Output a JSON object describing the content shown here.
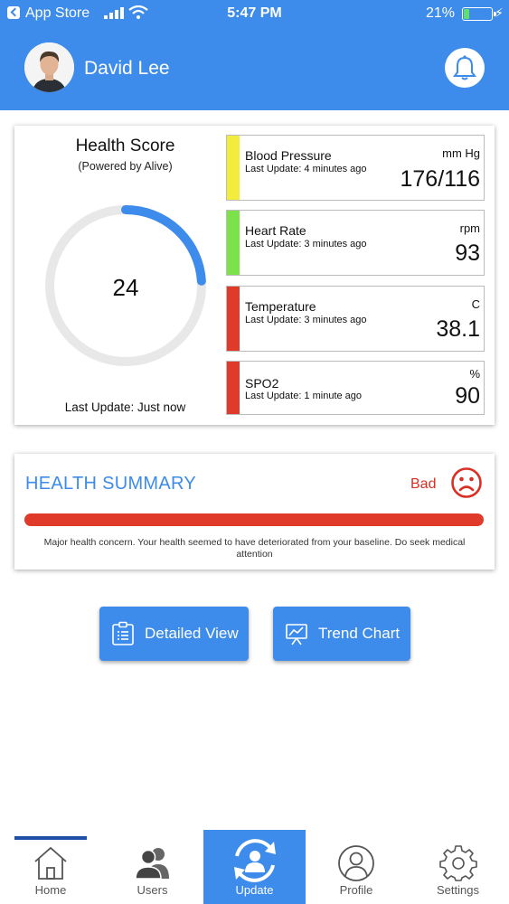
{
  "status_bar": {
    "carrier": "App Store",
    "time": "5:47 PM",
    "battery": "21%",
    "battery_level": 0.21
  },
  "header": {
    "user_name": "David Lee",
    "avatar": "user-avatar",
    "bell_icon": "bell-icon"
  },
  "health_score": {
    "title": "Health Score",
    "subtitle": "(Powered by Alive)",
    "value": "24",
    "progress": 0.24,
    "last_update": "Last Update: Just now",
    "accent": "#3d8bea",
    "track": "#e8e8e8"
  },
  "vitals": [
    {
      "name": "Blood Pressure",
      "update": "Last Update: 4 minutes ago",
      "unit": "mm Hg",
      "value": "176/116",
      "color": "#f2ec3c"
    },
    {
      "name": "Heart Rate",
      "update": "Last Update: 3 minutes ago",
      "unit": "rpm",
      "value": "93",
      "color": "#7ce24a"
    },
    {
      "name": "Temperature",
      "update": "Last Update: 3 minutes ago",
      "unit": "C",
      "value": "38.1",
      "color": "#e03a2b"
    },
    {
      "name": "SPO2",
      "update": "Last Update: 1 minute ago",
      "unit": "%",
      "value": "90",
      "color": "#e03a2b"
    }
  ],
  "summary": {
    "title": "HEALTH SUMMARY",
    "status": "Bad",
    "status_icon": "sad-face-icon",
    "text": "Major health concern. Your health seemed to have deteriorated from your baseline. Do seek medical attention",
    "bar_color": "#e03a2b"
  },
  "actions": {
    "detailed_view": "Detailed View",
    "trend_chart": "Trend Chart"
  },
  "nav": {
    "home": "Home",
    "users": "Users",
    "update": "Update",
    "profile": "Profile",
    "settings": "Settings",
    "active": "update"
  }
}
